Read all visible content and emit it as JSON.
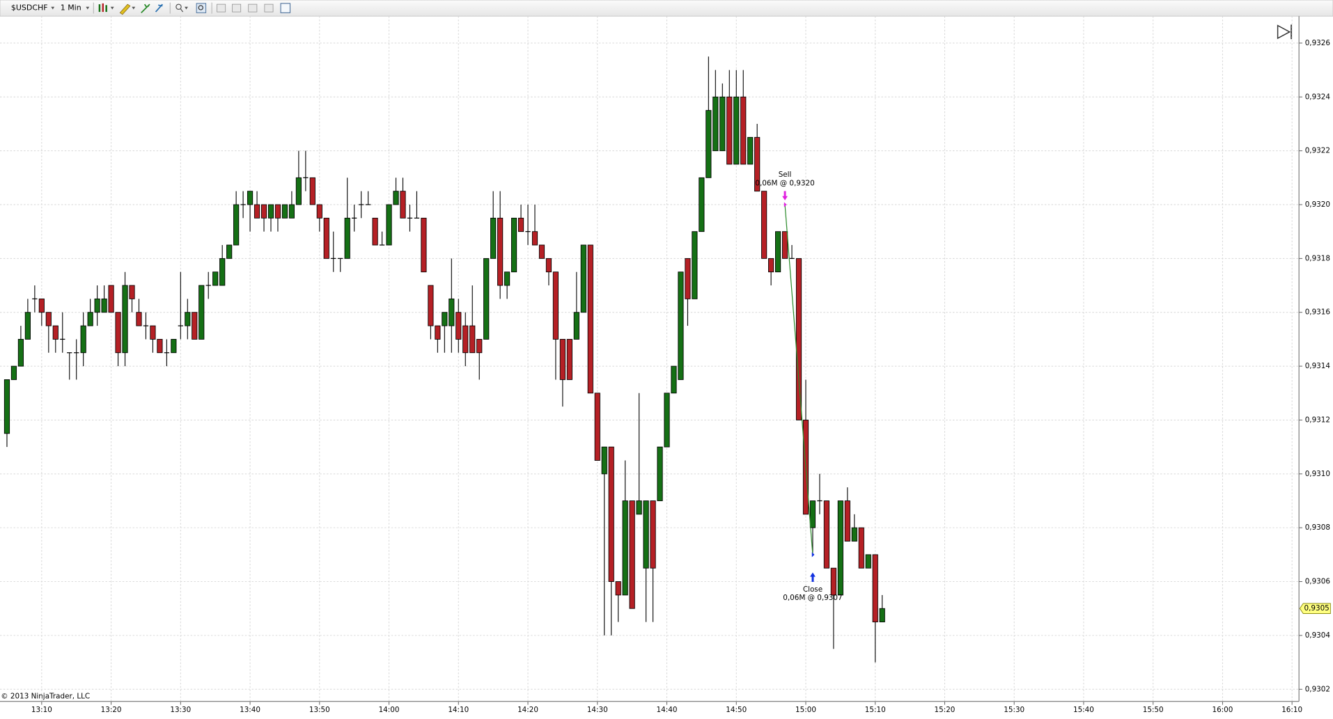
{
  "toolbar": {
    "instrument": "$USDCHF",
    "interval": "1 Min"
  },
  "copyright": "© 2013 NinjaTrader, LLC",
  "chart_data": {
    "type": "candlestick",
    "x": [
      "13:05",
      "13:06",
      "13:07",
      "13:08",
      "13:09",
      "13:10",
      "13:11",
      "13:12",
      "13:13",
      "13:14",
      "13:15",
      "13:16",
      "13:17",
      "13:18",
      "13:19",
      "13:20",
      "13:21",
      "13:22",
      "13:23",
      "13:24",
      "13:25",
      "13:26",
      "13:27",
      "13:28",
      "13:29",
      "13:30",
      "13:31",
      "13:32",
      "13:33",
      "13:34",
      "13:35",
      "13:36",
      "13:37",
      "13:38",
      "13:39",
      "13:40",
      "13:41",
      "13:42",
      "13:43",
      "13:44",
      "13:45",
      "13:46",
      "13:47",
      "13:48",
      "13:49",
      "13:50",
      "13:51",
      "13:52",
      "13:53",
      "13:54",
      "13:55",
      "13:56",
      "13:57",
      "13:58",
      "13:59",
      "14:00",
      "14:01",
      "14:02",
      "14:03",
      "14:04",
      "14:05",
      "14:06",
      "14:07",
      "14:08",
      "14:09",
      "14:10",
      "14:11",
      "14:12",
      "14:13",
      "14:14",
      "14:15",
      "14:16",
      "14:17",
      "14:18",
      "14:19",
      "14:20",
      "14:21",
      "14:22",
      "14:23",
      "14:24",
      "14:25",
      "14:26",
      "14:27",
      "14:28",
      "14:29",
      "14:30",
      "14:31",
      "14:32",
      "14:33",
      "14:34",
      "14:35",
      "14:36",
      "14:37",
      "14:38",
      "14:39",
      "14:40",
      "14:41",
      "14:42",
      "14:43",
      "14:44",
      "14:45",
      "14:46",
      "14:47",
      "14:48",
      "14:49",
      "14:50",
      "14:51",
      "14:52",
      "14:53",
      "14:54",
      "14:55",
      "14:56",
      "14:57",
      "14:58",
      "14:59",
      "15:00",
      "15:01",
      "15:02",
      "15:03",
      "15:04",
      "15:05",
      "15:06",
      "15:07",
      "15:08",
      "15:09",
      "15:10",
      "15:11"
    ],
    "open": [
      0.93115,
      0.93135,
      0.9314,
      0.9315,
      0.93165,
      0.93165,
      0.9316,
      0.93155,
      0.9315,
      0.93145,
      0.93145,
      0.93145,
      0.93155,
      0.9316,
      0.9316,
      0.9317,
      0.9316,
      0.93145,
      0.9317,
      0.9316,
      0.93155,
      0.93155,
      0.9315,
      0.93145,
      0.93145,
      0.93155,
      0.93155,
      0.9316,
      0.9315,
      0.9317,
      0.9317,
      0.9317,
      0.9318,
      0.93185,
      0.932,
      0.932,
      0.932,
      0.932,
      0.93195,
      0.932,
      0.93195,
      0.93195,
      0.932,
      0.9321,
      0.9321,
      0.932,
      0.93195,
      0.9318,
      0.9318,
      0.9318,
      0.93195,
      0.932,
      0.932,
      0.93195,
      0.93185,
      0.93185,
      0.932,
      0.93205,
      0.93195,
      0.93195,
      0.93195,
      0.9317,
      0.93155,
      0.93155,
      0.93155,
      0.9316,
      0.93155,
      0.93155,
      0.9315,
      0.9315,
      0.9318,
      0.93195,
      0.9317,
      0.93175,
      0.93195,
      0.9319,
      0.9319,
      0.93185,
      0.9318,
      0.93175,
      0.9315,
      0.9315,
      0.9315,
      0.9316,
      0.93185,
      0.9313,
      0.931,
      0.9311,
      0.9306,
      0.93055,
      0.9309,
      0.93085,
      0.93065,
      0.9309,
      0.9309,
      0.9311,
      0.9313,
      0.93135,
      0.9318,
      0.93165,
      0.9319,
      0.9321,
      0.9322,
      0.9322,
      0.9324,
      0.93215,
      0.9324,
      0.93215,
      0.93225,
      0.93205,
      0.9318,
      0.93175,
      0.9319,
      0.9318,
      0.9318,
      0.9312,
      0.9308,
      0.9309,
      0.9309,
      0.93065,
      0.93055,
      0.9309,
      0.93075,
      0.9308,
      0.93065,
      0.9307,
      0.93045
    ],
    "high": [
      0.93135,
      0.9314,
      0.93155,
      0.93165,
      0.9317,
      0.93165,
      0.9316,
      0.93155,
      0.9316,
      0.93145,
      0.9315,
      0.9316,
      0.93165,
      0.9317,
      0.9317,
      0.9317,
      0.9316,
      0.93175,
      0.9317,
      0.93165,
      0.9316,
      0.93155,
      0.9315,
      0.9315,
      0.9315,
      0.93175,
      0.93165,
      0.9316,
      0.9317,
      0.93175,
      0.93175,
      0.93185,
      0.93185,
      0.93205,
      0.93205,
      0.93205,
      0.93205,
      0.932,
      0.932,
      0.932,
      0.932,
      0.93205,
      0.9322,
      0.9322,
      0.9321,
      0.932,
      0.93195,
      0.9319,
      0.9318,
      0.9321,
      0.932,
      0.93205,
      0.93205,
      0.93195,
      0.9319,
      0.932,
      0.9321,
      0.9321,
      0.932,
      0.93205,
      0.93195,
      0.9317,
      0.93155,
      0.9316,
      0.9318,
      0.93165,
      0.9316,
      0.9317,
      0.9315,
      0.9318,
      0.93205,
      0.93205,
      0.93175,
      0.93195,
      0.932,
      0.932,
      0.932,
      0.93185,
      0.9318,
      0.93175,
      0.9315,
      0.9315,
      0.93175,
      0.93185,
      0.93185,
      0.9313,
      0.9311,
      0.9311,
      0.9306,
      0.93105,
      0.9309,
      0.9313,
      0.9309,
      0.9309,
      0.9311,
      0.9313,
      0.9314,
      0.93175,
      0.9318,
      0.9319,
      0.9321,
      0.93255,
      0.9325,
      0.93245,
      0.9325,
      0.9325,
      0.9325,
      0.93225,
      0.9323,
      0.93205,
      0.9318,
      0.9319,
      0.9319,
      0.93185,
      0.9318,
      0.93135,
      0.9309,
      0.931,
      0.9309,
      0.93065,
      0.9309,
      0.93095,
      0.93085,
      0.9308,
      0.9307,
      0.9307,
      0.93055
    ],
    "low": [
      0.9311,
      0.93135,
      0.9314,
      0.9315,
      0.9316,
      0.93155,
      0.93145,
      0.93145,
      0.93145,
      0.93135,
      0.93135,
      0.9314,
      0.93155,
      0.93155,
      0.9316,
      0.9316,
      0.9314,
      0.9314,
      0.9316,
      0.93155,
      0.9315,
      0.93145,
      0.93145,
      0.9314,
      0.93145,
      0.9315,
      0.9315,
      0.9315,
      0.9315,
      0.93165,
      0.9317,
      0.9317,
      0.9318,
      0.93185,
      0.93195,
      0.9319,
      0.93195,
      0.9319,
      0.9319,
      0.9319,
      0.93195,
      0.93195,
      0.932,
      0.93205,
      0.932,
      0.9319,
      0.9318,
      0.93175,
      0.93175,
      0.9318,
      0.9319,
      0.93195,
      0.932,
      0.93185,
      0.93185,
      0.93185,
      0.932,
      0.93195,
      0.9319,
      0.93195,
      0.93175,
      0.9315,
      0.93145,
      0.93145,
      0.93145,
      0.93145,
      0.9314,
      0.93145,
      0.93135,
      0.9315,
      0.9318,
      0.93165,
      0.93165,
      0.93175,
      0.9319,
      0.93185,
      0.93185,
      0.9318,
      0.9317,
      0.93135,
      0.93125,
      0.93135,
      0.9315,
      0.9316,
      0.9313,
      0.93105,
      0.9304,
      0.9304,
      0.93045,
      0.93055,
      0.9305,
      0.93085,
      0.93045,
      0.93045,
      0.9309,
      0.9311,
      0.9313,
      0.93135,
      0.93155,
      0.93165,
      0.9319,
      0.9321,
      0.9322,
      0.9322,
      0.93215,
      0.93215,
      0.93215,
      0.93215,
      0.93205,
      0.9318,
      0.9317,
      0.93175,
      0.9318,
      0.9318,
      0.9312,
      0.93085,
      0.9307,
      0.93085,
      0.93065,
      0.93035,
      0.93055,
      0.93075,
      0.93075,
      0.93065,
      0.93065,
      0.9303,
      0.93045
    ],
    "close": [
      0.93135,
      0.9314,
      0.9315,
      0.9316,
      0.93165,
      0.9316,
      0.93155,
      0.9315,
      0.9315,
      0.93145,
      0.93145,
      0.93155,
      0.9316,
      0.93165,
      0.93165,
      0.9316,
      0.93145,
      0.9317,
      0.93165,
      0.93155,
      0.93155,
      0.9315,
      0.93145,
      0.93145,
      0.9315,
      0.93155,
      0.9316,
      0.9315,
      0.9317,
      0.9317,
      0.93175,
      0.9318,
      0.93185,
      0.932,
      0.932,
      0.93205,
      0.93195,
      0.93195,
      0.932,
      0.93195,
      0.932,
      0.932,
      0.9321,
      0.9321,
      0.932,
      0.93195,
      0.9318,
      0.9318,
      0.9318,
      0.93195,
      0.93195,
      0.932,
      0.932,
      0.93185,
      0.93185,
      0.932,
      0.93205,
      0.93195,
      0.93195,
      0.93195,
      0.93175,
      0.93155,
      0.9315,
      0.9316,
      0.93165,
      0.9315,
      0.93145,
      0.93145,
      0.93145,
      0.9318,
      0.93195,
      0.9317,
      0.93175,
      0.93195,
      0.9319,
      0.9319,
      0.93185,
      0.9318,
      0.93175,
      0.9315,
      0.93135,
      0.93135,
      0.9316,
      0.93185,
      0.9313,
      0.93105,
      0.9311,
      0.9306,
      0.93055,
      0.9309,
      0.9305,
      0.9309,
      0.9309,
      0.93065,
      0.9311,
      0.9313,
      0.9314,
      0.93175,
      0.93165,
      0.9319,
      0.9321,
      0.93235,
      0.9324,
      0.9324,
      0.93215,
      0.9324,
      0.93215,
      0.93225,
      0.93205,
      0.9318,
      0.93175,
      0.9319,
      0.9318,
      0.9318,
      0.9312,
      0.93085,
      0.9309,
      0.9309,
      0.93065,
      0.93055,
      0.9309,
      0.93075,
      0.9308,
      0.93065,
      0.9307,
      0.93045,
      0.9305
    ],
    "up_color": "#157015",
    "down_color": "#b52025",
    "xlim": [
      "13:04",
      "16:11"
    ],
    "xticks": [
      "13:10",
      "13:20",
      "13:30",
      "13:40",
      "13:50",
      "14:00",
      "14:10",
      "14:20",
      "14:30",
      "14:40",
      "14:50",
      "15:00",
      "15:10",
      "15:20",
      "15:30",
      "15:40",
      "15:50",
      "16:00",
      "16:10"
    ],
    "ylim": [
      0.930155,
      0.9327
    ],
    "yticks": [
      {
        "value": 0.9302,
        "label": "0,9302"
      },
      {
        "value": 0.9304,
        "label": "0,9304"
      },
      {
        "value": 0.9306,
        "label": "0,9306"
      },
      {
        "value": 0.9308,
        "label": "0,9308"
      },
      {
        "value": 0.931,
        "label": "0,9310"
      },
      {
        "value": 0.9312,
        "label": "0,9312"
      },
      {
        "value": 0.9314,
        "label": "0,9314"
      },
      {
        "value": 0.9316,
        "label": "0,9316"
      },
      {
        "value": 0.9318,
        "label": "0,9318"
      },
      {
        "value": 0.932,
        "label": "0,9320"
      },
      {
        "value": 0.9322,
        "label": "0,9322"
      },
      {
        "value": 0.9324,
        "label": "0,9324"
      },
      {
        "value": 0.9326,
        "label": "0,9326"
      }
    ],
    "grid": true,
    "last_price": {
      "value": 0.9305,
      "label": "0,9305"
    },
    "trades": [
      {
        "time": "14:57",
        "price": 0.932,
        "action": "Sell",
        "detail": "0,06M @ 0,9320",
        "color": "#e020e0"
      },
      {
        "time": "15:01",
        "price": 0.9307,
        "action": "Close",
        "detail": "0,06M @ 0,9307",
        "color": "#1030e0"
      }
    ],
    "trade_line_color": "#2a8a2a"
  }
}
